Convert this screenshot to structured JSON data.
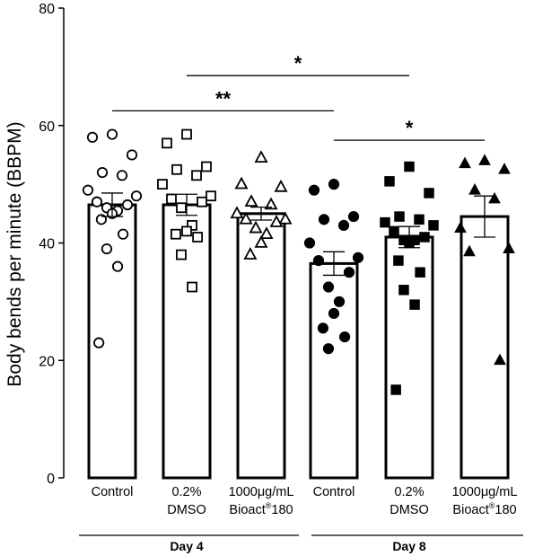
{
  "chart_data": {
    "type": "bar",
    "ylabel": "Body bends per minute (BBPM)",
    "xlabel": "",
    "ylim": [
      0,
      80
    ],
    "yticks": [
      0,
      20,
      40,
      60,
      80
    ],
    "grid": false,
    "categories": [
      {
        "lines": [
          "Control"
        ],
        "group": "Day 4",
        "marker": "circle-open"
      },
      {
        "lines": [
          "0.2%",
          "DMSO"
        ],
        "group": "Day 4",
        "marker": "square-open"
      },
      {
        "lines": [
          "1000μg/mL",
          "Bioact",
          "®",
          "180"
        ],
        "group": "Day 4",
        "marker": "triangle-open"
      },
      {
        "lines": [
          "Control"
        ],
        "group": "Day 8",
        "marker": "circle-filled"
      },
      {
        "lines": [
          "0.2%",
          "DMSO"
        ],
        "group": "Day 8",
        "marker": "square-filled"
      },
      {
        "lines": [
          "1000μg/mL",
          "Bioact",
          "®",
          "180"
        ],
        "group": "Day 8",
        "marker": "triangle-filled"
      }
    ],
    "series": [
      {
        "mean": 46.5,
        "sem": 2.0,
        "points": [
          58.5,
          58.0,
          55.0,
          52.0,
          51.5,
          49.0,
          48.0,
          47.0,
          46.5,
          46.0,
          45.5,
          45.0,
          44.0,
          41.5,
          39.0,
          36.0,
          23.0
        ]
      },
      {
        "mean": 46.5,
        "sem": 1.8,
        "points": [
          58.5,
          57.0,
          53.0,
          52.5,
          51.5,
          50.0,
          48.0,
          47.5,
          47.0,
          46.0,
          43.0,
          42.0,
          41.5,
          41.0,
          38.0,
          32.5
        ]
      },
      {
        "mean": 45.0,
        "sem": 1.1,
        "points": [
          54.5,
          50.0,
          49.5,
          47.0,
          46.5,
          45.0,
          44.0,
          44.0,
          43.5,
          42.5,
          41.5,
          40.0,
          38.0
        ]
      },
      {
        "mean": 36.5,
        "sem": 2.0,
        "points": [
          50.0,
          49.0,
          44.5,
          44.0,
          43.0,
          40.0,
          37.5,
          37.0,
          35.0,
          32.5,
          30.0,
          28.0,
          25.5,
          24.0,
          22.0
        ]
      },
      {
        "mean": 41.0,
        "sem": 1.8,
        "points": [
          53.0,
          50.5,
          48.5,
          44.5,
          44.0,
          43.5,
          43.0,
          42.0,
          41.0,
          40.5,
          40.5,
          40.0,
          37.0,
          35.0,
          32.0,
          29.5,
          15.0
        ]
      },
      {
        "mean": 44.5,
        "sem": 3.5,
        "points": [
          54.0,
          53.5,
          52.5,
          49.0,
          47.5,
          42.5,
          39.0,
          38.5,
          20.0
        ]
      }
    ],
    "groups": [
      {
        "label": "Day 4",
        "from": 0,
        "to": 2
      },
      {
        "label": "Day 8",
        "from": 3,
        "to": 5
      }
    ],
    "significance": [
      {
        "from": 0,
        "to": 3,
        "y": 62.5,
        "label": "**"
      },
      {
        "from": 1,
        "to": 4,
        "y": 68.5,
        "label": "*"
      },
      {
        "from": 3,
        "to": 5,
        "y": 57.5,
        "label": "*"
      }
    ],
    "colors": {
      "bar_fill": "#ffffff",
      "bar_stroke": "#000000",
      "marker": "#000000"
    }
  }
}
